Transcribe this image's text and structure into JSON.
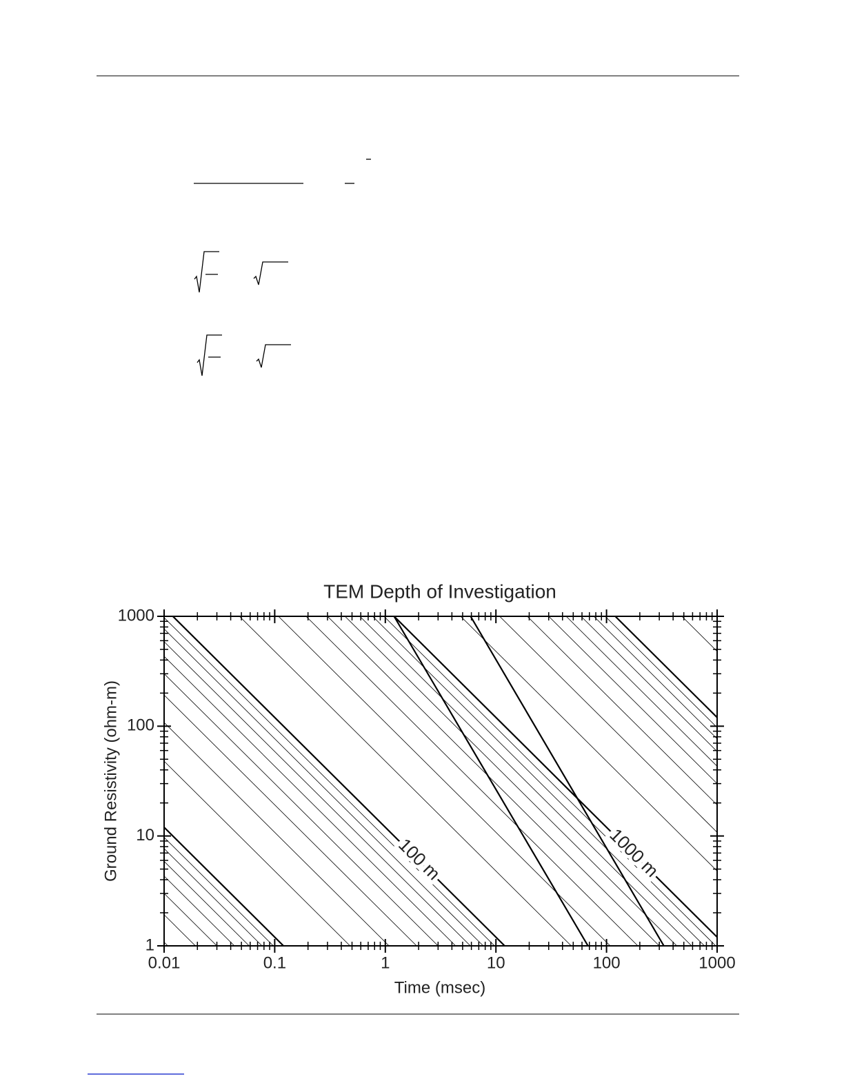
{
  "chart_data": {
    "type": "line",
    "title": "TEM Depth of Investigation",
    "x_label": "Time (msec)",
    "y_label": "Ground Resistivity (ohm-m)",
    "xscale": "log",
    "yscale": "log",
    "xlim": [
      0.01,
      1000
    ],
    "ylim": [
      1,
      1000
    ],
    "xticks": [
      0.01,
      0.1,
      1,
      10,
      100,
      1000
    ],
    "yticks": [
      1,
      10,
      100,
      1000
    ],
    "xminorticks": [
      0.02,
      0.03,
      0.04,
      0.05,
      0.06,
      0.07,
      0.08,
      0.09,
      0.2,
      0.3,
      0.4,
      0.5,
      0.6,
      0.7,
      0.8,
      0.9,
      2,
      3,
      4,
      5,
      6,
      7,
      8,
      9,
      20,
      30,
      40,
      50,
      60,
      70,
      80,
      90,
      200,
      300,
      400,
      500,
      600,
      700,
      800,
      900
    ],
    "yminorticks": [
      2,
      3,
      4,
      5,
      6,
      7,
      8,
      9,
      20,
      30,
      40,
      50,
      60,
      70,
      80,
      90,
      200,
      300,
      400,
      500,
      600,
      700,
      800,
      900
    ],
    "color": "#000000",
    "series": [
      {
        "x": [
          0.01,
          0.0108
        ],
        "values": [
          1.08,
          1
        ],
        "linewidth": 0.8
      },
      {
        "x": [
          0.01,
          0.0192
        ],
        "values": [
          1.92,
          1
        ],
        "linewidth": 0.8
      },
      {
        "x": [
          0.01,
          0.03
        ],
        "values": [
          3,
          1
        ],
        "linewidth": 0.8
      },
      {
        "x": [
          0.01,
          0.0432
        ],
        "values": [
          4.32,
          1
        ],
        "linewidth": 0.8
      },
      {
        "x": [
          0.01,
          0.0588
        ],
        "values": [
          5.88,
          1
        ],
        "linewidth": 0.8
      },
      {
        "x": [
          0.01,
          0.0768
        ],
        "values": [
          7.68,
          1
        ],
        "linewidth": 0.8
      },
      {
        "x": [
          0.01,
          0.0972
        ],
        "values": [
          9.72,
          1
        ],
        "linewidth": 0.8
      },
      {
        "x": [
          0.01,
          0.12
        ],
        "values": [
          12,
          1
        ],
        "linewidth": 2.2
      },
      {
        "x": [
          0.01,
          0.48
        ],
        "values": [
          48,
          1
        ],
        "linewidth": 0.8
      },
      {
        "x": [
          0.01,
          1.08
        ],
        "values": [
          108,
          1
        ],
        "linewidth": 0.8
      },
      {
        "x": [
          0.01,
          1.92
        ],
        "values": [
          192,
          1
        ],
        "linewidth": 0.8
      },
      {
        "x": [
          0.01,
          3
        ],
        "values": [
          300,
          1
        ],
        "linewidth": 0.8
      },
      {
        "x": [
          0.01,
          4.32
        ],
        "values": [
          432,
          1
        ],
        "linewidth": 0.8
      },
      {
        "x": [
          0.01,
          5.88
        ],
        "values": [
          588,
          1
        ],
        "linewidth": 0.8
      },
      {
        "x": [
          0.01,
          7.68
        ],
        "values": [
          768,
          1
        ],
        "linewidth": 0.8
      },
      {
        "x": [
          0.01,
          9.72
        ],
        "values": [
          972,
          1
        ],
        "linewidth": 0.8
      },
      {
        "x": [
          0.012,
          12
        ],
        "values": [
          1000,
          1
        ],
        "linewidth": 2.2,
        "label": "100 m"
      },
      {
        "x": [
          0.048,
          48
        ],
        "values": [
          1000,
          1
        ],
        "linewidth": 0.8
      },
      {
        "x": [
          0.108,
          108
        ],
        "values": [
          1000,
          1
        ],
        "linewidth": 0.8
      },
      {
        "x": [
          0.192,
          192
        ],
        "values": [
          1000,
          1
        ],
        "linewidth": 0.8
      },
      {
        "x": [
          0.3,
          300
        ],
        "values": [
          1000,
          1
        ],
        "linewidth": 0.8
      },
      {
        "x": [
          0.432,
          432
        ],
        "values": [
          1000,
          1
        ],
        "linewidth": 0.8
      },
      {
        "x": [
          0.588,
          588
        ],
        "values": [
          1000,
          1
        ],
        "linewidth": 0.8
      },
      {
        "x": [
          0.768,
          768
        ],
        "values": [
          1000,
          1
        ],
        "linewidth": 0.8
      },
      {
        "x": [
          0.972,
          972
        ],
        "values": [
          1000,
          1
        ],
        "linewidth": 0.8
      },
      {
        "x": [
          1.2,
          1000
        ],
        "values": [
          1000,
          1.2
        ],
        "linewidth": 2.2,
        "label": "1000 m"
      },
      {
        "x": [
          4.8,
          1000
        ],
        "values": [
          1000,
          4.8
        ],
        "linewidth": 0.8
      },
      {
        "x": [
          10.8,
          1000
        ],
        "values": [
          1000,
          10.8
        ],
        "linewidth": 0.8
      },
      {
        "x": [
          19.2,
          1000
        ],
        "values": [
          1000,
          19.2
        ],
        "linewidth": 0.8
      },
      {
        "x": [
          30,
          1000
        ],
        "values": [
          1000,
          30
        ],
        "linewidth": 0.8
      },
      {
        "x": [
          43.2,
          1000
        ],
        "values": [
          1000,
          43.2
        ],
        "linewidth": 0.8
      },
      {
        "x": [
          58.8,
          1000
        ],
        "values": [
          1000,
          58.8
        ],
        "linewidth": 0.8
      },
      {
        "x": [
          76.8,
          1000
        ],
        "values": [
          1000,
          76.8
        ],
        "linewidth": 0.8
      },
      {
        "x": [
          97.2,
          1000
        ],
        "values": [
          1000,
          97.2
        ],
        "linewidth": 0.8
      },
      {
        "x": [
          120,
          1000
        ],
        "values": [
          1000,
          120
        ],
        "linewidth": 2.2
      },
      {
        "x": [
          480,
          1000
        ],
        "values": [
          1000,
          480
        ],
        "linewidth": 0.8
      },
      {
        "x": [
          1.2,
          68
        ],
        "values": [
          1000,
          1
        ],
        "linewidth": 2.2
      },
      {
        "x": [
          5.9,
          330
        ],
        "values": [
          1000,
          1
        ],
        "linewidth": 2.2
      }
    ]
  }
}
